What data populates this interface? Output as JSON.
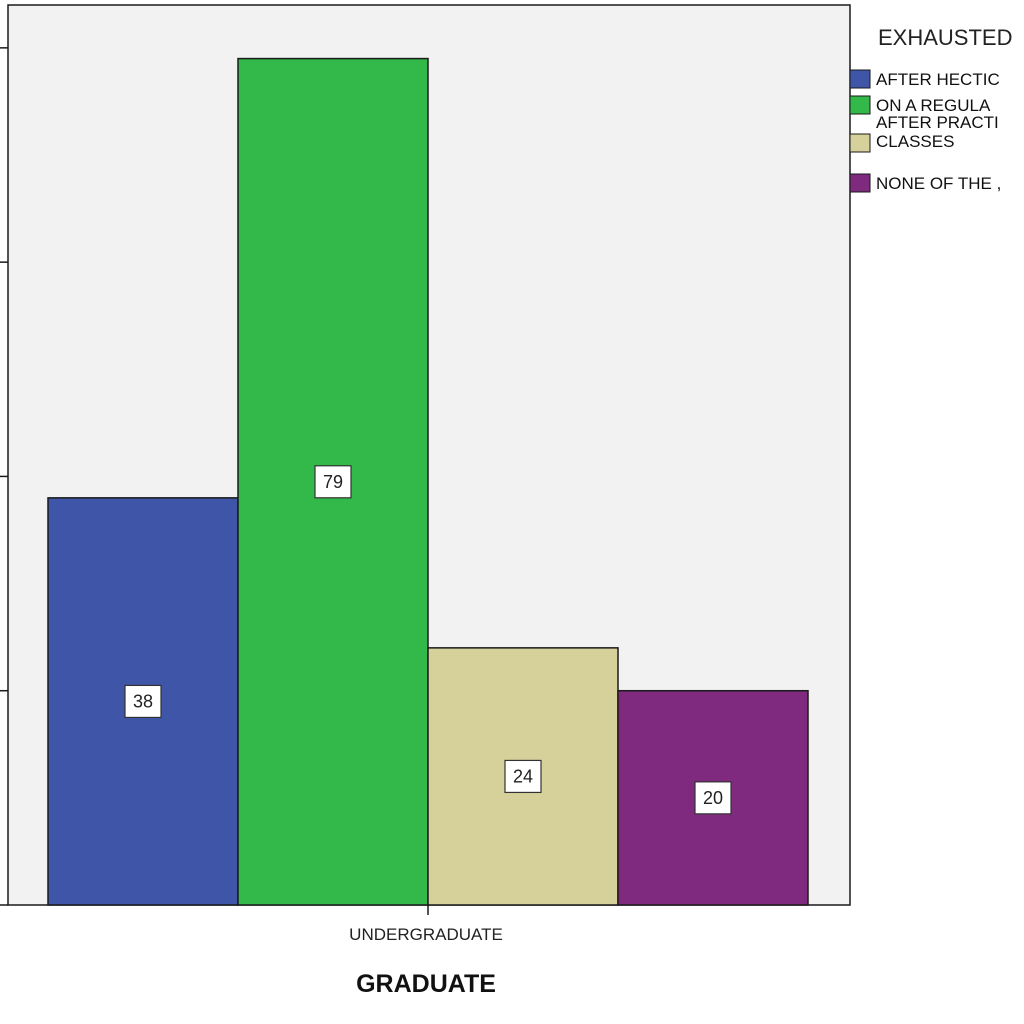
{
  "chart_data": {
    "type": "bar",
    "xlabel": "GRADUATE",
    "categories": [
      "UNDERGRADUATE"
    ],
    "legend_title": "EXHAUSTED",
    "legend_position": "right",
    "ylim": [
      0,
      80
    ],
    "grid": false,
    "series": [
      {
        "name": "AFTER HECTIC",
        "values": [
          38
        ],
        "color": "#3f55a8"
      },
      {
        "name": "ON A REGULA",
        "values": [
          79
        ],
        "color": "#33b84a"
      },
      {
        "name": "AFTER PRACTI CLASSES",
        "values": [
          24
        ],
        "color": "#d6d09a"
      },
      {
        "name": "NONE OF THE ,",
        "values": [
          20
        ],
        "color": "#7f2a7e"
      }
    ]
  }
}
